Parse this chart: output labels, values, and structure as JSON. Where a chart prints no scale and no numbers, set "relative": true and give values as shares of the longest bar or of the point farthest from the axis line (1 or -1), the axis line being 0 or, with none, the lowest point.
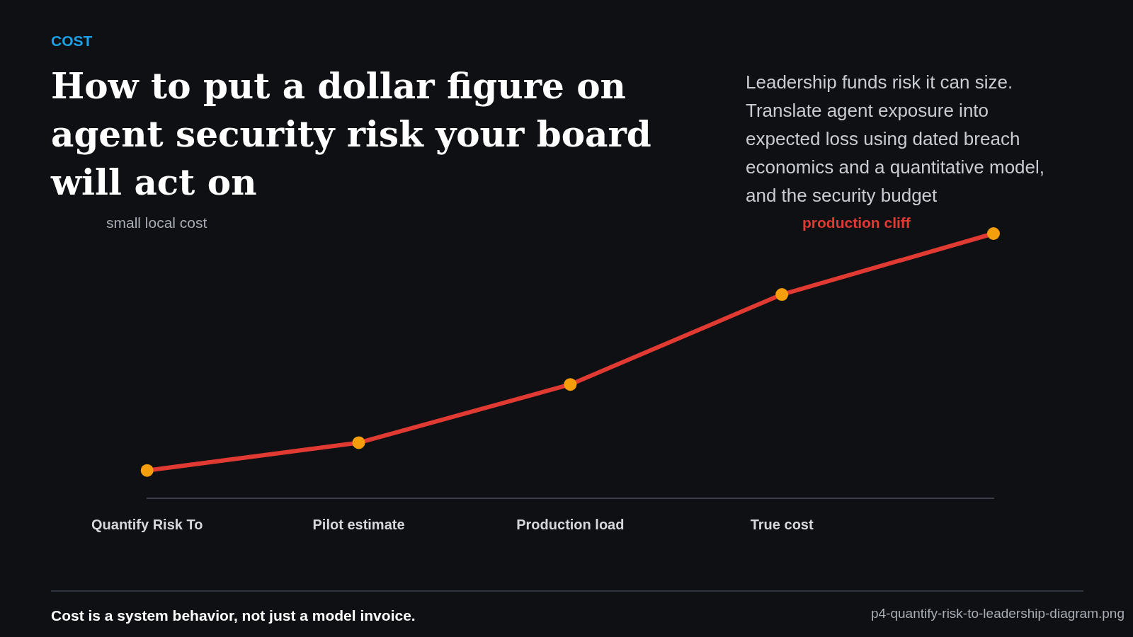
{
  "chart_data": {
    "type": "line",
    "title": "How to put a dollar figure on agent security risk your board will act on",
    "subtitle": "Leadership funds risk it can size. Translate agent exposure into expected loss using dated breach economics and a quantitative model, and the security budget",
    "categories": [
      "Quantify Risk To",
      "Pilot estimate",
      "Production load",
      "True cost",
      null
    ],
    "relative": true,
    "grid": false,
    "legend": false,
    "marker": "circle",
    "line_style": "solid",
    "series": [
      {
        "color": "#e03a33",
        "colors": [
          "#f59e0b",
          "#f59e0b",
          "#f59e0b",
          "#f59e0b",
          "#f59e0b"
        ],
        "values": [
          0.105,
          0.21,
          0.43,
          0.77,
          1
        ]
      }
    ],
    "annotations": [
      "COST",
      "small local cost",
      "production cliff",
      "Cost is a system behavior, not just a model invoice.",
      "p4-quantify-risk-to-leadership-diagram.png"
    ]
  }
}
